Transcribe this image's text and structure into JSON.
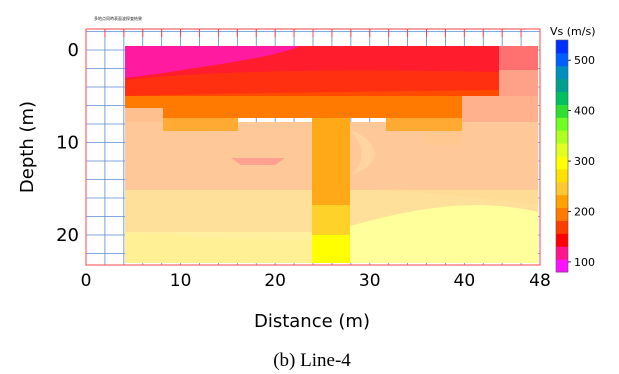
{
  "chart_data": {
    "type": "heatmap",
    "title": "",
    "xlabel": "Distance (m)",
    "ylabel": "Depth (m)",
    "xlim": [
      0,
      48
    ],
    "ylim": [
      23,
      -1
    ],
    "x_ticks": [
      "0",
      "10",
      "20",
      "30",
      "40",
      "48"
    ],
    "y_ticks": [
      "0",
      "10",
      "20"
    ],
    "x_tick_values": [
      0,
      10,
      20,
      30,
      40,
      48
    ],
    "y_tick_values": [
      0,
      10,
      20
    ],
    "colorbar": {
      "title": "Vs (m/s)",
      "ticks": [
        "100",
        "200",
        "300",
        "400",
        "500"
      ],
      "tick_values": [
        100,
        200,
        300,
        400,
        500
      ],
      "range": [
        80,
        540
      ],
      "colors": [
        "#ff10ff",
        "#ff1490",
        "#ff0000",
        "#ff3c00",
        "#ff7a00",
        "#ffa200",
        "#ffc830",
        "#ffe000",
        "#ffff00",
        "#e0ff20",
        "#b0ff20",
        "#70ff20",
        "#30e030",
        "#00c060",
        "#00a090",
        "#0090c0",
        "#0060ff",
        "#0030ff"
      ]
    },
    "velocity_model_m_per_s": [
      {
        "x0": 4,
        "x1": 45,
        "z0": 0,
        "z1": 2.5,
        "vs": 150
      },
      {
        "x0": 4,
        "x1": 45,
        "z0": 2.5,
        "z1": 5,
        "vs": 175
      },
      {
        "x0": 4,
        "x1": 45,
        "z0": 5,
        "z1": 8,
        "vs": 205
      },
      {
        "x0": 4,
        "x1": 48,
        "z0": 8,
        "z1": 12,
        "vs": 255
      },
      {
        "x0": 4,
        "x1": 48,
        "z0": 12,
        "z1": 17,
        "vs": 270
      },
      {
        "x0": 4,
        "x1": 48,
        "z0": 17,
        "z1": 23,
        "vs": 300
      },
      {
        "x0": 24,
        "x1": 28,
        "z0": 8,
        "z1": 20,
        "vs": 235
      },
      {
        "x0": 24,
        "x1": 28,
        "z0": 20,
        "z1": 23,
        "vs": 320
      }
    ],
    "grid": true
  },
  "figure": {
    "caption": "(b) Line-4",
    "header_note": "多地点同時表面波探査結果"
  }
}
